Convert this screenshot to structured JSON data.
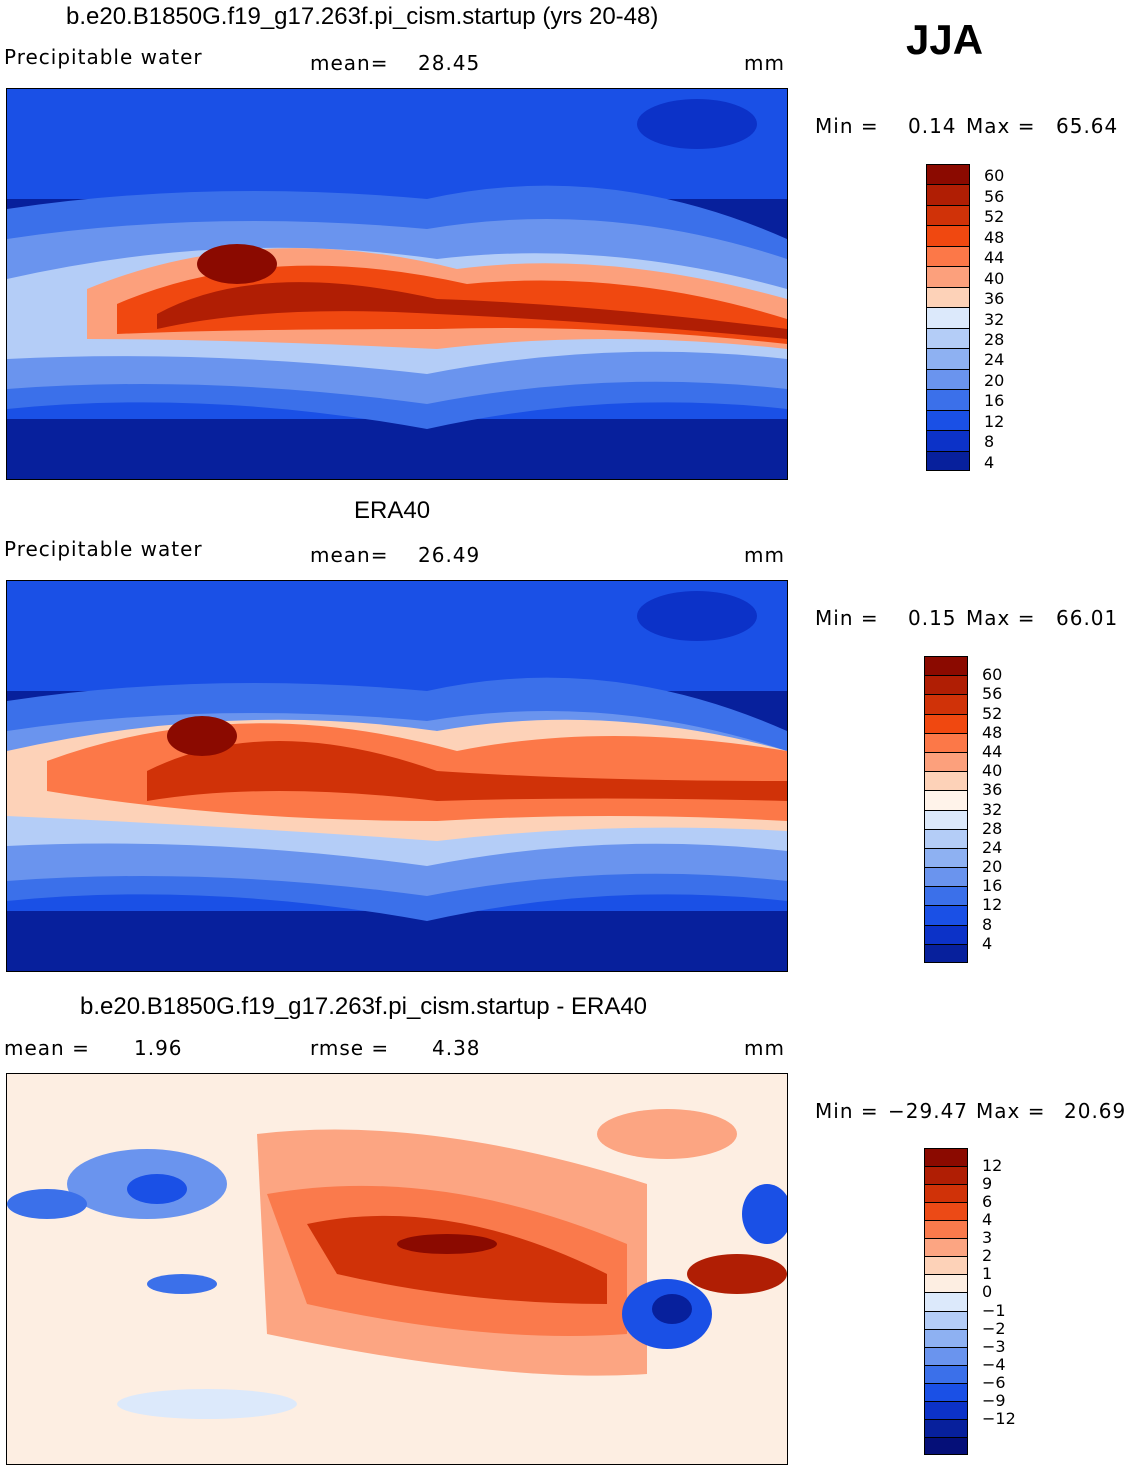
{
  "season": "JJA",
  "panels": [
    {
      "id": "model",
      "title": "b.e20.B1850G.f19_g17.263f.pi_cism.startup (yrs 20-48)",
      "left_label": "Precipitable water",
      "stat_label": "mean=",
      "stat_value": "28.45",
      "units": "mm",
      "min_label": "Min =",
      "min_value": "0.14",
      "max_label": "Max =",
      "max_value": "65.64",
      "colorbar": {
        "colors": [
          "#8b0a00",
          "#b01e04",
          "#d03208",
          "#f04810",
          "#fc7848",
          "#fca07c",
          "#fdd2b8",
          "#dce9fb",
          "#b4cdf7",
          "#8eb1f2",
          "#6a94ee",
          "#3b70ea",
          "#1a50e6",
          "#0c32c8",
          "#07209c"
        ],
        "ticks": [
          "60",
          "56",
          "52",
          "48",
          "44",
          "40",
          "36",
          "32",
          "28",
          "24",
          "20",
          "16",
          "12",
          "8",
          "4"
        ]
      }
    },
    {
      "id": "obs",
      "title": "ERA40",
      "left_label": "Precipitable water",
      "stat_label": "mean=",
      "stat_value": "26.49",
      "units": "mm",
      "min_label": "Min =",
      "min_value": "0.15",
      "max_label": "Max =",
      "max_value": "66.01",
      "colorbar": {
        "colors": [
          "#8b0a00",
          "#b01e04",
          "#d03208",
          "#f04810",
          "#fc7848",
          "#fca07c",
          "#fdd2b8",
          "#fff3ea",
          "#dce9fb",
          "#b4cdf7",
          "#8eb1f2",
          "#6a94ee",
          "#3b70ea",
          "#1a50e6",
          "#0c32c8",
          "#07209c"
        ],
        "ticks": [
          "60",
          "56",
          "52",
          "48",
          "44",
          "40",
          "36",
          "32",
          "28",
          "24",
          "20",
          "16",
          "12",
          "8",
          "4"
        ]
      }
    },
    {
      "id": "diff",
      "title": "b.e20.B1850G.f19_g17.263f.pi_cism.startup - ERA40",
      "left_label": "mean =",
      "left_value": "1.96",
      "stat_label": "rmse =",
      "stat_value": "4.38",
      "units": "mm",
      "min_label": "Min =",
      "min_value": "−29.47",
      "max_label": "Max =",
      "max_value": "20.69",
      "colorbar": {
        "colors": [
          "#8b0a00",
          "#b01e04",
          "#d03208",
          "#ec4a16",
          "#fa7a4c",
          "#fca582",
          "#fdd2b8",
          "#fdeee2",
          "#dce9fb",
          "#b4cdf7",
          "#8eb1f2",
          "#6a94ee",
          "#3b70ea",
          "#1a50e6",
          "#0c32c8",
          "#07209c",
          "#050f78"
        ],
        "ticks": [
          "12",
          "9",
          "6",
          "4",
          "3",
          "2",
          "1",
          "0",
          "−1",
          "−2",
          "−3",
          "−4",
          "−6",
          "−9",
          "−12"
        ]
      }
    }
  ]
}
